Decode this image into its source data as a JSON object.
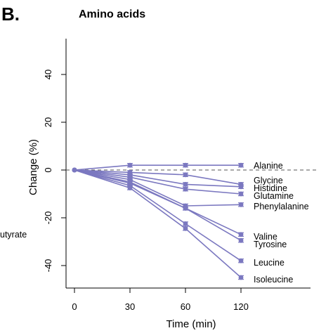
{
  "panel_letter": "B.",
  "left_cut_label": "utyrate",
  "chart_data": {
    "type": "line",
    "title": "Amino acids",
    "xlabel": "Time (min)",
    "ylabel": "Change (%)",
    "x": [
      "0",
      "30",
      "60",
      "120"
    ],
    "ylim": [
      -50,
      55
    ],
    "yticks": [
      40,
      20,
      0,
      -20,
      -40
    ],
    "reference_line": 0,
    "color": "#7b78c0",
    "series": [
      {
        "name": "Alanine",
        "values": [
          0,
          2,
          2,
          2
        ]
      },
      {
        "name": "Glycine",
        "values": [
          0,
          -1,
          -2,
          -6
        ]
      },
      {
        "name": "Histidine",
        "values": [
          0,
          -2,
          -6,
          -7
        ]
      },
      {
        "name": "Glutamine",
        "values": [
          0,
          -3,
          -8,
          -10
        ]
      },
      {
        "name": "Phenylalanine",
        "values": [
          0,
          -4,
          -15,
          -14.5
        ]
      },
      {
        "name": "Valine",
        "values": [
          0,
          -5,
          -16,
          -27
        ]
      },
      {
        "name": "Tyrosine",
        "values": [
          0,
          -5.5,
          -16,
          -29.5
        ]
      },
      {
        "name": "Leucine",
        "values": [
          0,
          -6.5,
          -22.5,
          -38
        ]
      },
      {
        "name": "Isoleucine",
        "values": [
          0,
          -7.5,
          -24.5,
          -45
        ]
      }
    ]
  }
}
